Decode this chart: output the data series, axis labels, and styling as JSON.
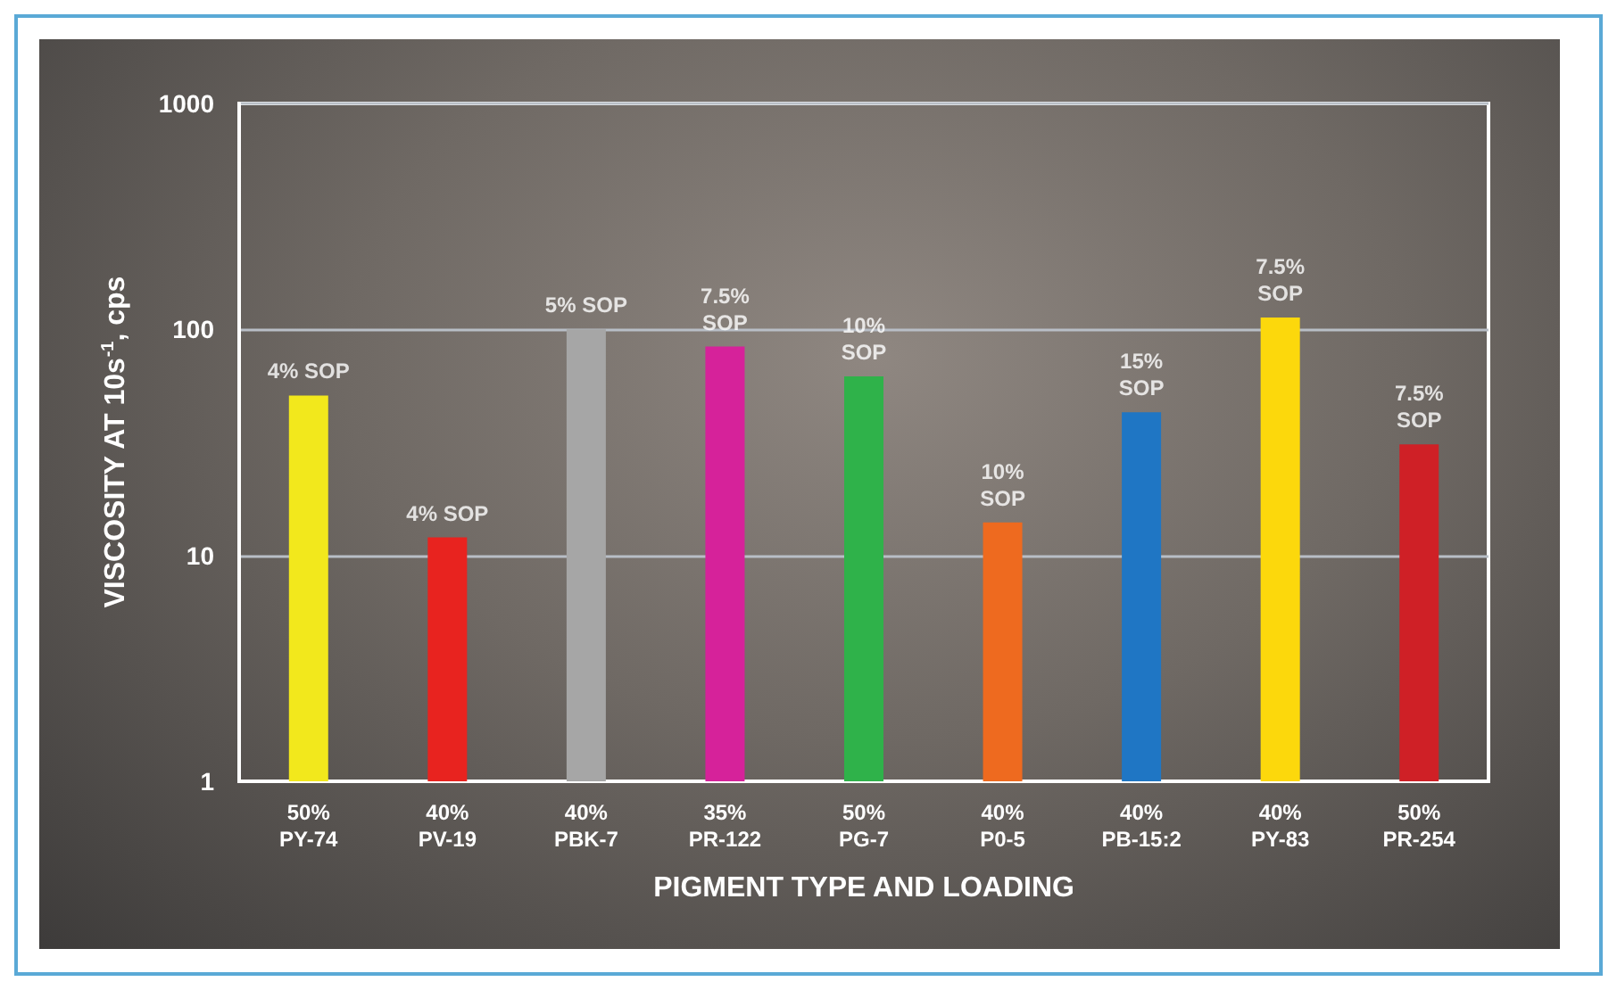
{
  "chart_data": {
    "type": "bar",
    "xlabel": "PIGMENT TYPE AND LOADING",
    "ylabel": "VISCOSITY AT 10s$^{-1}$, cps",
    "categories": [
      "50%\nPY-74",
      "40%\nPV-19",
      "40%\nPBK-7",
      "35%\nPR-122",
      "50%\nPG-7",
      "40%\nP0-5",
      "40%\nPB-15:2",
      "40%\nPY-83",
      "50%\nPR-254"
    ],
    "values": [
      51,
      12,
      100,
      84,
      62,
      14,
      43,
      113,
      31
    ],
    "colors": [
      "#f2e81c",
      "#e8231f",
      "#a6a6a6",
      "#d6229a",
      "#2fb24a",
      "#ee6a1f",
      "#1f76c4",
      "#fcd80c",
      "#cf2026"
    ],
    "annotations": [
      {
        "text": "4% SOP",
        "x": "50%\nPY-74",
        "y": 51
      },
      {
        "text": "4% SOP",
        "x": "40%\nPV-19",
        "y": 12
      },
      {
        "text": "5% SOP",
        "x": "40%\nPBK-7",
        "y": 100
      },
      {
        "text": "7.5%\nSOP",
        "x": "35%\nPR-122",
        "y": 84
      },
      {
        "text": "10%\nSOP",
        "x": "50%\nPG-7",
        "y": 62
      },
      {
        "text": "10%\nSOP",
        "x": "40%\nP0-5",
        "y": 14
      },
      {
        "text": "15%\nSOP",
        "x": "40%\nPB-15:2",
        "y": 43
      },
      {
        "text": "7.5%\nSOP",
        "x": "40%\nPY-83",
        "y": 113
      },
      {
        "text": "7.5%\nSOP",
        "x": "50%\nPR-254",
        "y": 31
      }
    ],
    "log": "y",
    "ylim": [
      1,
      1000
    ],
    "yticks": [
      1,
      10,
      100,
      1000
    ],
    "grid": "y"
  }
}
